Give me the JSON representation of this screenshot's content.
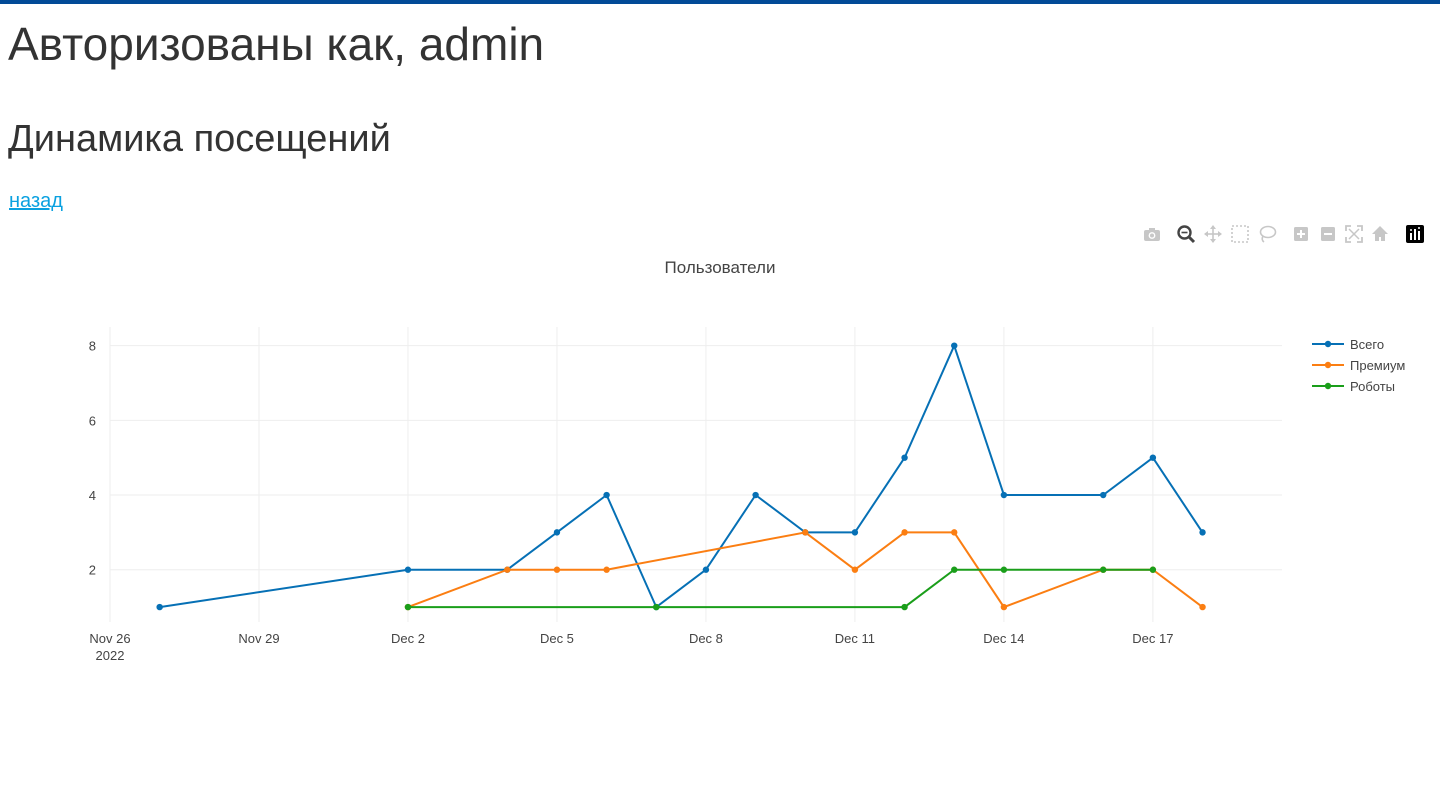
{
  "header": {
    "title": "Авторизованы как, admin",
    "section_title": "Динамика посещений",
    "back_link": "назад"
  },
  "modebar": {
    "buttons": [
      "camera-icon",
      "zoom-icon",
      "pan-icon",
      "box-select-icon",
      "lasso-select-icon",
      "zoom-in-icon",
      "zoom-out-icon",
      "autoscale-icon",
      "reset-axes-icon",
      "plotly-logo-icon"
    ]
  },
  "colors": {
    "top_bar": "#024a97",
    "link": "#0aa1e0",
    "grid": "#eeeeee"
  },
  "chart_data": {
    "type": "line",
    "title": "Пользователи",
    "xlabel": "",
    "ylabel": "",
    "x_range": [
      "2022-11-26",
      "2022-12-19.6"
    ],
    "y_range": [
      0.6,
      8.5
    ],
    "x_ticks": [
      {
        "date": "2022-11-26",
        "label": "Nov 26",
        "sublabel": "2022"
      },
      {
        "date": "2022-11-29",
        "label": "Nov 29"
      },
      {
        "date": "2022-12-02",
        "label": "Dec 2"
      },
      {
        "date": "2022-12-05",
        "label": "Dec 5"
      },
      {
        "date": "2022-12-08",
        "label": "Dec 8"
      },
      {
        "date": "2022-12-11",
        "label": "Dec 11"
      },
      {
        "date": "2022-12-14",
        "label": "Dec 14"
      },
      {
        "date": "2022-12-17",
        "label": "Dec 17"
      }
    ],
    "y_ticks": [
      2,
      4,
      6,
      8
    ],
    "legend_position": "top-right",
    "series": [
      {
        "name": "Всего",
        "color": "#0670b5",
        "points": [
          [
            "2022-11-27",
            1
          ],
          [
            "2022-12-02",
            2
          ],
          [
            "2022-12-04",
            2
          ],
          [
            "2022-12-05",
            3
          ],
          [
            "2022-12-06",
            4
          ],
          [
            "2022-12-07",
            1
          ],
          [
            "2022-12-08",
            2
          ],
          [
            "2022-12-09",
            4
          ],
          [
            "2022-12-10",
            3
          ],
          [
            "2022-12-11",
            3
          ],
          [
            "2022-12-12",
            5
          ],
          [
            "2022-12-13",
            8
          ],
          [
            "2022-12-14",
            4
          ],
          [
            "2022-12-16",
            4
          ],
          [
            "2022-12-17",
            5
          ],
          [
            "2022-12-18",
            3
          ]
        ]
      },
      {
        "name": "Премиум",
        "color": "#fb7e12",
        "points": [
          [
            "2022-12-02",
            1
          ],
          [
            "2022-12-04",
            2
          ],
          [
            "2022-12-05",
            2
          ],
          [
            "2022-12-06",
            2
          ],
          [
            "2022-12-10",
            3
          ],
          [
            "2022-12-11",
            2
          ],
          [
            "2022-12-12",
            3
          ],
          [
            "2022-12-13",
            3
          ],
          [
            "2022-12-14",
            1
          ],
          [
            "2022-12-16",
            2
          ],
          [
            "2022-12-17",
            2
          ],
          [
            "2022-12-18",
            1
          ]
        ]
      },
      {
        "name": "Роботы",
        "color": "#1a9e1a",
        "points": [
          [
            "2022-12-02",
            1
          ],
          [
            "2022-12-07",
            1
          ],
          [
            "2022-12-12",
            1
          ],
          [
            "2022-12-13",
            2
          ],
          [
            "2022-12-14",
            2
          ],
          [
            "2022-12-16",
            2
          ],
          [
            "2022-12-17",
            2
          ]
        ]
      }
    ]
  }
}
